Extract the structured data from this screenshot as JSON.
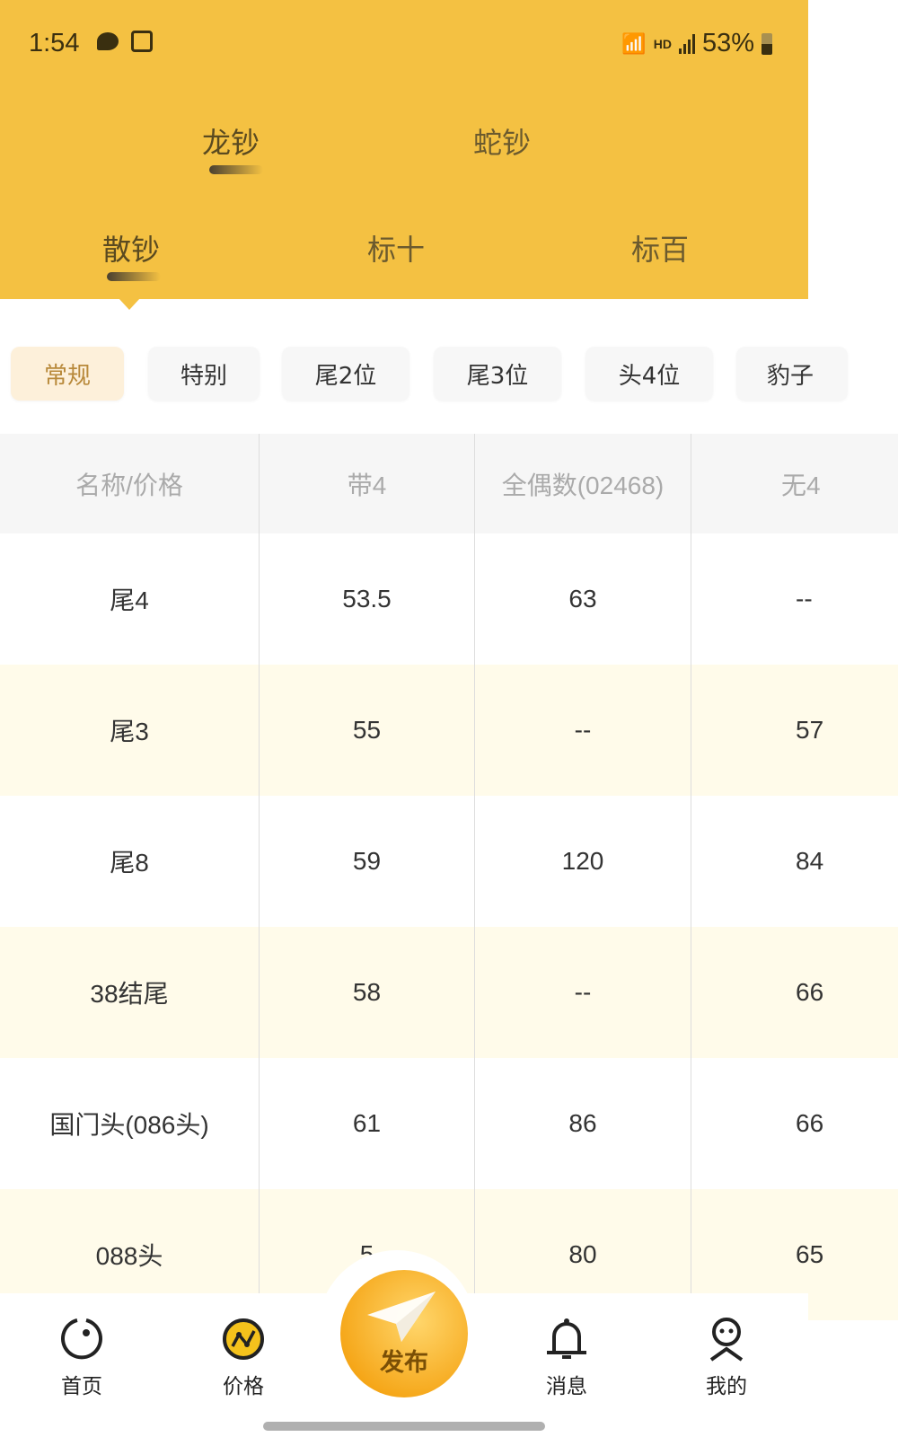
{
  "status_bar": {
    "time": "1:54",
    "battery": "53%",
    "network": "HD"
  },
  "top_tabs": [
    {
      "label": "龙钞",
      "active": true
    },
    {
      "label": "蛇钞",
      "active": false
    }
  ],
  "sub_tabs": [
    {
      "label": "散钞",
      "active": true
    },
    {
      "label": "标十",
      "active": false
    },
    {
      "label": "标百",
      "active": false
    }
  ],
  "filter_chips": [
    {
      "label": "常规",
      "active": true
    },
    {
      "label": "特别"
    },
    {
      "label": "尾2位"
    },
    {
      "label": "尾3位"
    },
    {
      "label": "头4位"
    },
    {
      "label": "豹子"
    }
  ],
  "table": {
    "headers": [
      "名称/价格",
      "带4",
      "全偶数(02468)",
      "无4"
    ],
    "rows": [
      [
        "尾4",
        "53.5",
        "63",
        "--"
      ],
      [
        "尾3",
        "55",
        "--",
        "57"
      ],
      [
        "尾8",
        "59",
        "120",
        "84"
      ],
      [
        "38结尾",
        "58",
        "--",
        "66"
      ],
      [
        "国门头(086头)",
        "61",
        "86",
        "66"
      ],
      [
        "088头",
        "5",
        "80",
        "65"
      ]
    ]
  },
  "bottom_nav": {
    "items": [
      {
        "label": "首页",
        "icon": "home-icon"
      },
      {
        "label": "价格",
        "icon": "price-chart-icon",
        "active": true
      },
      {
        "label": "消息",
        "icon": "bell-icon"
      },
      {
        "label": "我的",
        "icon": "profile-icon"
      }
    ],
    "publish_label": "发布"
  },
  "colors": {
    "brand": "#f4c142",
    "active_chip_text": "#b8893a",
    "stripe": "#fffbea"
  }
}
